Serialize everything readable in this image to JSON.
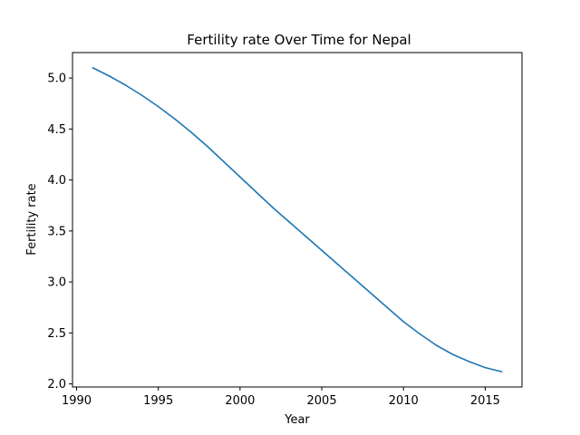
{
  "chart_data": {
    "type": "line",
    "title": "Fertility rate Over Time for Nepal",
    "xlabel": "Year",
    "ylabel": "Fertility rate",
    "xlim": [
      1989.75,
      2017.25
    ],
    "ylim": [
      1.97,
      5.25
    ],
    "xticks": [
      1990,
      1995,
      2000,
      2005,
      2010,
      2015
    ],
    "yticks": [
      2.0,
      2.5,
      3.0,
      3.5,
      4.0,
      4.5,
      5.0
    ],
    "xtick_labels": [
      "1990",
      "1995",
      "2000",
      "2005",
      "2010",
      "2015"
    ],
    "ytick_labels": [
      "2.0",
      "2.5",
      "3.0",
      "3.5",
      "4.0",
      "4.5",
      "5.0"
    ],
    "grid": false,
    "series": [
      {
        "color": "#1f77b4",
        "x": [
          1991,
          1992,
          1993,
          1994,
          1995,
          1996,
          1997,
          1998,
          1999,
          2000,
          2001,
          2002,
          2003,
          2004,
          2005,
          2006,
          2007,
          2008,
          2009,
          2010,
          2011,
          2012,
          2013,
          2014,
          2015,
          2016
        ],
        "y": [
          5.1,
          5.02,
          4.93,
          4.83,
          4.72,
          4.6,
          4.47,
          4.33,
          4.18,
          4.03,
          3.88,
          3.73,
          3.59,
          3.45,
          3.31,
          3.17,
          3.03,
          2.89,
          2.75,
          2.61,
          2.49,
          2.38,
          2.29,
          2.22,
          2.16,
          2.12
        ]
      }
    ]
  }
}
